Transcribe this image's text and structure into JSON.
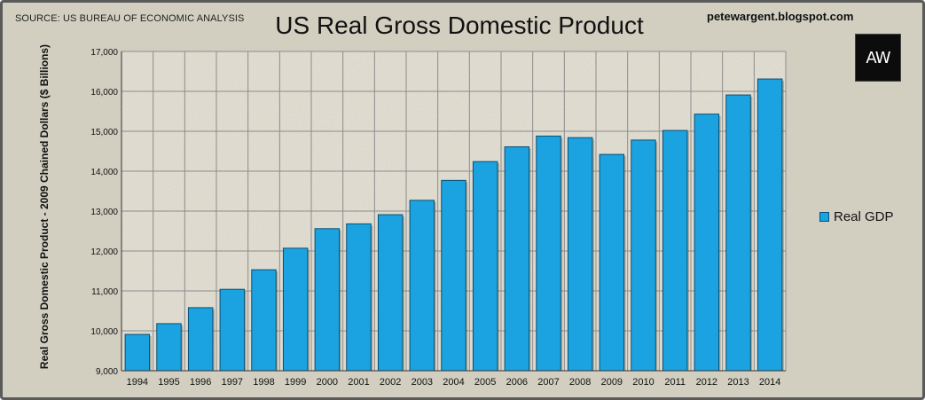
{
  "header": {
    "source": "SOURCE: US BUREAU OF ECONOMIC ANALYSIS",
    "blog": "petewargent.blogspot.com",
    "logo_text": "AW"
  },
  "colors": {
    "bar": "#1aa3e0",
    "bar_edge": "#0a4f73",
    "plot_bg": "#e8e4d8",
    "frame_bg": "#d2cfc1"
  },
  "chart_data": {
    "type": "bar",
    "title": "US Real Gross Domestic Product",
    "xlabel": "",
    "ylabel": "Real Gross Domestic Product - 2009 Chained Dollars ($ Billions)",
    "ylim": [
      9000,
      17000
    ],
    "yticks": [
      "9,000",
      "10,000",
      "11,000",
      "12,000",
      "13,000",
      "14,000",
      "15,000",
      "16,000",
      "17,000"
    ],
    "grid": true,
    "legend_position": "right",
    "categories": [
      "1994",
      "1995",
      "1996",
      "1997",
      "1998",
      "1999",
      "2000",
      "2001",
      "2002",
      "2003",
      "2004",
      "2005",
      "2006",
      "2007",
      "2008",
      "2009",
      "2010",
      "2011",
      "2012",
      "2013",
      "2014"
    ],
    "series": [
      {
        "name": "Real GDP",
        "values": [
          9910,
          10180,
          10580,
          11040,
          11530,
          12070,
          12560,
          12680,
          12910,
          13270,
          13770,
          14240,
          14610,
          14880,
          14840,
          14420,
          14780,
          15020,
          15430,
          15910,
          16310
        ]
      }
    ]
  }
}
